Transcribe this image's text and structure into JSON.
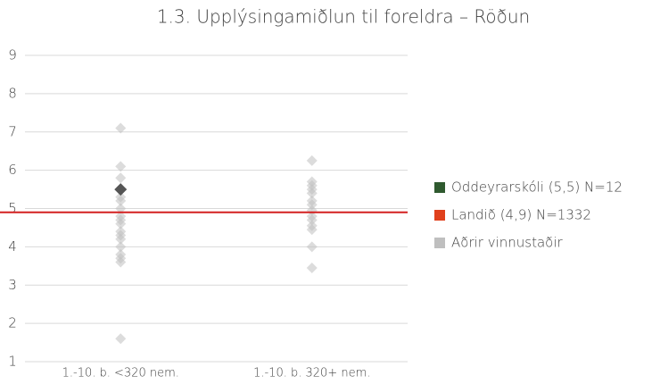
{
  "chart_data": {
    "type": "scatter",
    "title": "1.3. Upplýsingamiðlun til foreldra – Röðun",
    "categories": [
      "1.-10. b. <320 nem.",
      "1.-10. b. 320+ nem."
    ],
    "ylim": [
      1,
      9
    ],
    "yticks": [
      1,
      2,
      3,
      4,
      5,
      6,
      7,
      8,
      9
    ],
    "grid": true,
    "legend": "right",
    "series": [
      {
        "name": "Oddeyrarskóli (5,5) N=12",
        "color": "#2f5a2f",
        "marker_color": "#555555",
        "style": "marker",
        "values": [
          [
            5.5
          ],
          []
        ]
      },
      {
        "name": "Landið (4,9) N=1332",
        "color": "#e0401c",
        "line_color": "#d42020",
        "style": "hline",
        "value": 4.9
      },
      {
        "name": "Aðrir vinnustaðir",
        "color": "#bfbfbf",
        "style": "marker",
        "values": [
          [
            7.1,
            6.1,
            5.8,
            5.3,
            5.2,
            5.0,
            4.8,
            4.7,
            4.6,
            4.4,
            4.3,
            4.2,
            4.0,
            3.8,
            3.7,
            3.6,
            1.6
          ],
          [
            6.25,
            5.7,
            5.6,
            5.5,
            5.4,
            5.2,
            5.1,
            4.95,
            4.8,
            4.7,
            4.55,
            4.45,
            4.0,
            3.45
          ]
        ]
      }
    ]
  }
}
